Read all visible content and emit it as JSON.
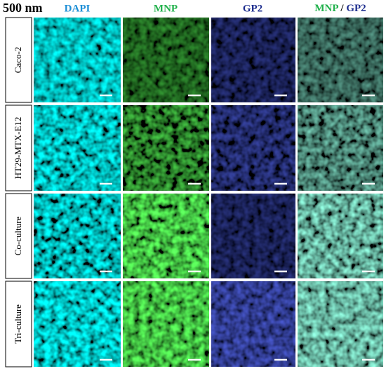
{
  "header": {
    "scale": "500 nm",
    "columns": [
      "DAPI",
      "MNP",
      "GP2"
    ],
    "merge": [
      "MNP",
      "/",
      "GP2"
    ]
  },
  "rows": [
    "Caco-2",
    "HT29-MTX-E12",
    "Co-culture",
    "Tri-culture"
  ]
}
